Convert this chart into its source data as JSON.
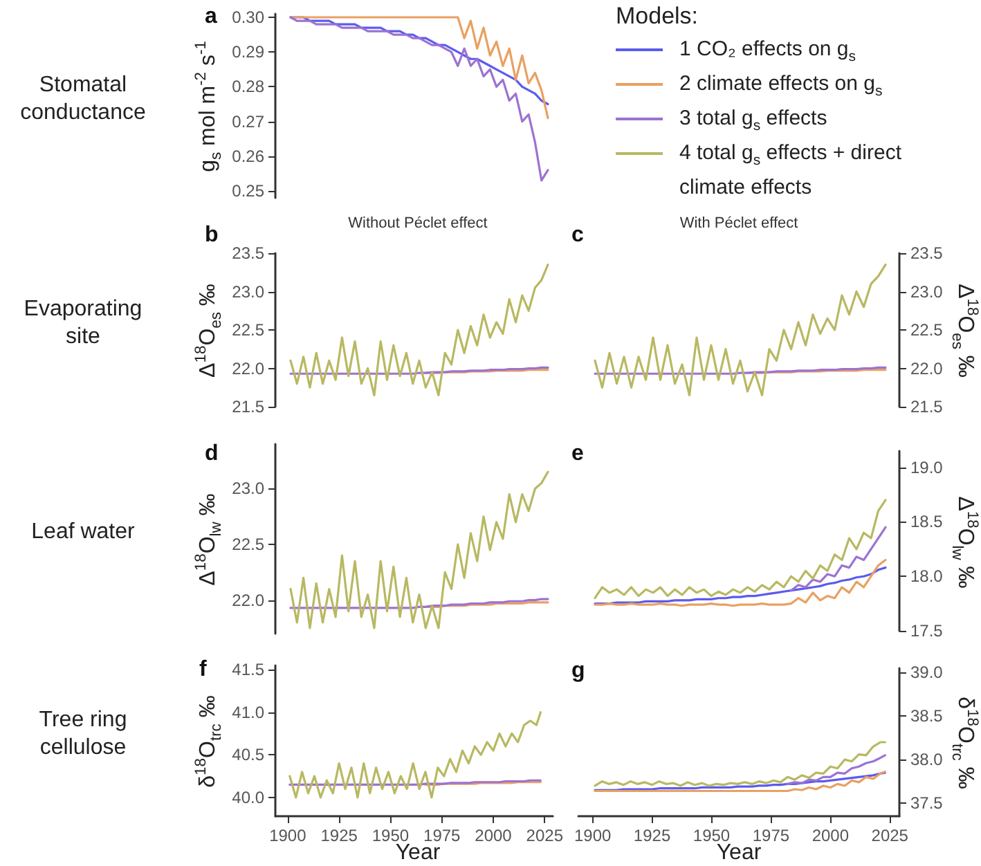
{
  "chart_data": [
    {
      "type": "line",
      "title": "a",
      "annotations": [
        "Stomatal conductance"
      ],
      "ylabel": "g$_{s}$ mol m$^{-2}$ s$^{-1}$",
      "legend": "right",
      "legend_title": "Models:",
      "tick_labels": "y",
      "categories": [
        null,
        null,
        null,
        null,
        null,
        null,
        null,
        null,
        null,
        null,
        null,
        null,
        null,
        null,
        null,
        null,
        null,
        null,
        null,
        null,
        null,
        null,
        null,
        null,
        null,
        null,
        null,
        null,
        null,
        null,
        null,
        null,
        null,
        null,
        null,
        null,
        null,
        null,
        null,
        null,
        null
      ],
      "ylim": [
        0.248,
        0.301
      ],
      "yticks": [
        0.25,
        0.26,
        0.27,
        0.28,
        0.29,
        {
          "value": 0.3,
          "label": "0.30"
        }
      ],
      "series": [
        {
          "name": "1 CO₂ effects on g$_{s}$",
          "color": "#5b5bef",
          "values": [
            0.3,
            0.3,
            0.3,
            0.299,
            0.299,
            0.299,
            0.299,
            0.298,
            0.298,
            0.298,
            0.298,
            0.297,
            0.297,
            0.297,
            0.297,
            0.296,
            0.296,
            0.296,
            0.295,
            0.295,
            0.294,
            0.294,
            0.293,
            0.292,
            0.292,
            0.291,
            0.29,
            0.289,
            0.288,
            0.288,
            0.287,
            0.286,
            0.285,
            0.284,
            0.283,
            0.282,
            0.28,
            0.279,
            0.278,
            0.276,
            0.275
          ]
        },
        {
          "name": "2 climate effects on g$_{s}$",
          "color": "#e9a062",
          "values": [
            0.3,
            0.3,
            0.3,
            0.3,
            0.3,
            0.3,
            0.3,
            0.3,
            0.3,
            0.3,
            0.3,
            0.3,
            0.3,
            0.3,
            0.3,
            0.3,
            0.3,
            0.3,
            0.3,
            0.3,
            0.3,
            0.3,
            0.3,
            0.3,
            0.3,
            0.3,
            0.3,
            0.294,
            0.299,
            0.291,
            0.297,
            0.289,
            0.293,
            0.286,
            0.291,
            0.282,
            0.289,
            0.281,
            0.284,
            0.279,
            0.271
          ]
        },
        {
          "name": "3 total g$_{s}$ effects",
          "color": "#9c72d2",
          "values": [
            0.3,
            0.299,
            0.299,
            0.299,
            0.298,
            0.298,
            0.298,
            0.298,
            0.297,
            0.297,
            0.297,
            0.297,
            0.296,
            0.296,
            0.296,
            0.296,
            0.295,
            0.295,
            0.295,
            0.294,
            0.294,
            0.293,
            0.292,
            0.292,
            0.291,
            0.29,
            0.286,
            0.291,
            0.286,
            0.288,
            0.283,
            0.285,
            0.28,
            0.282,
            0.276,
            0.278,
            0.27,
            0.272,
            0.264,
            0.253,
            0.256
          ]
        },
        {
          "name": "4 total g$_{s}$ effects + direct climate effects",
          "color": "#b8b862",
          "values": [
            null,
            null,
            null,
            null,
            null,
            null,
            null,
            null,
            null,
            null,
            null,
            null,
            null,
            null,
            null,
            null,
            null,
            null,
            null,
            null,
            null,
            null,
            null,
            null,
            null,
            null,
            null,
            null,
            null,
            null,
            null,
            null,
            null,
            null,
            null,
            null,
            null,
            null,
            null,
            null,
            null
          ]
        }
      ]
    },
    {
      "type": "line",
      "title": "b",
      "subtitle": "Without Péclet effect",
      "annotations": [
        "Evaporating site"
      ],
      "ylabel": "Δ$^{18}$O$_{es}$ ‰",
      "tick_labels": "y",
      "categories": [
        null,
        null,
        null,
        null,
        null,
        null,
        null,
        null,
        null,
        null,
        null,
        null,
        null,
        null,
        null,
        null,
        null,
        null,
        null,
        null,
        null,
        null,
        null,
        null,
        null,
        null,
        null,
        null,
        null,
        null,
        null,
        null,
        null,
        null,
        null,
        null,
        null,
        null,
        null,
        null,
        null
      ],
      "ylim": [
        21.5,
        23.5
      ],
      "yticks": [
        21.5,
        {
          "value": 22,
          "label": "22.0"
        },
        22.5,
        {
          "value": 23,
          "label": "23.0"
        },
        23.5
      ],
      "series": [
        {
          "color": "#5b5bef",
          "values": [
            null,
            null,
            null,
            null,
            null,
            null,
            null,
            null,
            null,
            null,
            null,
            null,
            null,
            null,
            null,
            null,
            null,
            null,
            null,
            null,
            null,
            null,
            null,
            null,
            null,
            null,
            null,
            null,
            null,
            null,
            null,
            null,
            null,
            null,
            null,
            null,
            null,
            null,
            null,
            null,
            null
          ]
        },
        {
          "color": "#e9a062",
          "values": [
            null,
            null,
            null,
            null,
            null,
            null,
            null,
            null,
            null,
            null,
            null,
            null,
            null,
            null,
            null,
            null,
            null,
            null,
            null,
            null,
            null,
            21.94,
            21.94,
            21.94,
            21.95,
            21.95,
            21.95,
            21.95,
            21.96,
            21.96,
            21.96,
            21.96,
            21.97,
            21.97,
            21.97,
            21.97,
            21.97,
            21.98,
            21.98,
            21.98,
            21.98
          ]
        },
        {
          "color": "#9c72d2",
          "values": [
            21.93,
            21.93,
            21.93,
            21.93,
            21.93,
            21.93,
            21.93,
            21.93,
            21.93,
            21.93,
            21.93,
            21.93,
            21.93,
            21.93,
            21.93,
            21.93,
            21.93,
            21.93,
            21.93,
            21.93,
            21.94,
            21.94,
            21.95,
            21.95,
            21.95,
            21.96,
            21.96,
            21.96,
            21.97,
            21.97,
            21.97,
            21.98,
            21.98,
            21.98,
            21.99,
            21.99,
            21.99,
            22.0,
            22.0,
            22.01,
            22.01
          ]
        },
        {
          "color": "#b8b862",
          "values": [
            22.1,
            21.8,
            22.15,
            21.75,
            22.2,
            21.8,
            22.1,
            21.85,
            22.4,
            21.9,
            22.35,
            21.8,
            22.0,
            21.65,
            22.35,
            21.85,
            22.3,
            21.9,
            22.2,
            21.8,
            22.1,
            21.75,
            21.95,
            21.65,
            22.2,
            22.05,
            22.5,
            22.2,
            22.55,
            22.3,
            22.7,
            22.4,
            22.6,
            22.45,
            22.9,
            22.6,
            22.95,
            22.75,
            23.05,
            23.15,
            23.35
          ]
        }
      ]
    },
    {
      "type": "line",
      "title": "c",
      "subtitle": "With Péclet effect",
      "ylabel": "Δ$^{18}$O$_{es}$ ‰",
      "tick_labels": "y",
      "categories": [
        null,
        null,
        null,
        null,
        null,
        null,
        null,
        null,
        null,
        null,
        null,
        null,
        null,
        null,
        null,
        null,
        null,
        null,
        null,
        null,
        null,
        null,
        null,
        null,
        null,
        null,
        null,
        null,
        null,
        null,
        null,
        null,
        null,
        null,
        null,
        null,
        null,
        null,
        null,
        null,
        null
      ],
      "ylim": [
        21.5,
        23.5
      ],
      "yticks": [
        21.5,
        {
          "value": 22,
          "label": "22.0"
        },
        22.5,
        {
          "value": 23,
          "label": "23.0"
        },
        23.5
      ],
      "series": [
        {
          "color": "#5b5bef",
          "values": [
            null,
            null,
            null,
            null,
            null,
            null,
            null,
            null,
            null,
            null,
            null,
            null,
            null,
            null,
            null,
            null,
            null,
            null,
            null,
            null,
            null,
            null,
            null,
            null,
            null,
            null,
            null,
            null,
            null,
            null,
            null,
            null,
            null,
            null,
            null,
            null,
            null,
            null,
            null,
            null,
            null
          ]
        },
        {
          "color": "#e9a062",
          "values": [
            null,
            null,
            null,
            null,
            null,
            null,
            null,
            null,
            null,
            null,
            null,
            null,
            null,
            null,
            null,
            null,
            null,
            null,
            null,
            null,
            null,
            21.94,
            21.94,
            21.94,
            21.95,
            21.95,
            21.95,
            21.95,
            21.96,
            21.96,
            21.96,
            21.96,
            21.97,
            21.97,
            21.97,
            21.97,
            21.97,
            21.98,
            21.98,
            21.98,
            21.98
          ]
        },
        {
          "color": "#9c72d2",
          "values": [
            21.93,
            21.93,
            21.93,
            21.93,
            21.93,
            21.93,
            21.93,
            21.93,
            21.93,
            21.93,
            21.93,
            21.93,
            21.93,
            21.93,
            21.93,
            21.93,
            21.93,
            21.93,
            21.93,
            21.93,
            21.94,
            21.94,
            21.95,
            21.95,
            21.95,
            21.96,
            21.96,
            21.96,
            21.97,
            21.97,
            21.97,
            21.98,
            21.98,
            21.98,
            21.99,
            21.99,
            21.99,
            22.0,
            22.0,
            22.01,
            22.01
          ]
        },
        {
          "color": "#b8b862",
          "values": [
            22.1,
            21.75,
            22.2,
            21.8,
            22.15,
            21.75,
            22.15,
            21.85,
            22.4,
            21.85,
            22.3,
            21.8,
            22.05,
            21.65,
            22.4,
            21.85,
            22.3,
            21.85,
            22.25,
            21.8,
            22.1,
            21.7,
            21.95,
            21.65,
            22.25,
            22.1,
            22.5,
            22.25,
            22.6,
            22.3,
            22.7,
            22.45,
            22.65,
            22.5,
            22.95,
            22.7,
            23.0,
            22.8,
            23.1,
            23.2,
            23.35
          ]
        }
      ]
    },
    {
      "type": "line",
      "title": "d",
      "annotations": [
        "Leaf water"
      ],
      "ylabel": "Δ$^{18}$O$_{lw}$ ‰",
      "tick_labels": "y",
      "categories": [
        null,
        null,
        null,
        null,
        null,
        null,
        null,
        null,
        null,
        null,
        null,
        null,
        null,
        null,
        null,
        null,
        null,
        null,
        null,
        null,
        null,
        null,
        null,
        null,
        null,
        null,
        null,
        null,
        null,
        null,
        null,
        null,
        null,
        null,
        null,
        null,
        null,
        null,
        null,
        null,
        null
      ],
      "ylim": [
        21.7,
        23.4
      ],
      "yticks": [
        {
          "value": 22,
          "label": "22.0"
        },
        22.5,
        {
          "value": 23,
          "label": "23.0"
        }
      ],
      "series": [
        {
          "color": "#5b5bef",
          "values": [
            null,
            null,
            null,
            null,
            null,
            null,
            null,
            null,
            null,
            null,
            null,
            null,
            null,
            null,
            null,
            null,
            null,
            null,
            null,
            null,
            null,
            null,
            null,
            null,
            null,
            null,
            null,
            null,
            null,
            null,
            null,
            null,
            null,
            null,
            null,
            null,
            null,
            null,
            null,
            null,
            null
          ]
        },
        {
          "color": "#e9a062",
          "values": [
            null,
            null,
            null,
            null,
            null,
            null,
            null,
            null,
            null,
            null,
            null,
            null,
            null,
            null,
            null,
            null,
            null,
            null,
            null,
            null,
            null,
            21.94,
            21.94,
            21.94,
            21.95,
            21.95,
            21.95,
            21.95,
            21.96,
            21.96,
            21.96,
            21.96,
            21.97,
            21.97,
            21.97,
            21.97,
            21.97,
            21.98,
            21.98,
            21.98,
            21.98
          ]
        },
        {
          "color": "#9c72d2",
          "values": [
            21.93,
            21.93,
            21.93,
            21.93,
            21.93,
            21.93,
            21.93,
            21.93,
            21.93,
            21.93,
            21.93,
            21.93,
            21.93,
            21.93,
            21.93,
            21.93,
            21.93,
            21.93,
            21.93,
            21.93,
            21.94,
            21.94,
            21.95,
            21.95,
            21.95,
            21.96,
            21.96,
            21.96,
            21.97,
            21.97,
            21.97,
            21.98,
            21.98,
            21.98,
            21.99,
            21.99,
            21.99,
            22.0,
            22.0,
            22.01,
            22.01
          ]
        },
        {
          "color": "#b8b862",
          "values": [
            22.1,
            21.8,
            22.2,
            21.75,
            22.15,
            21.8,
            22.1,
            21.85,
            22.4,
            21.9,
            22.35,
            21.85,
            22.05,
            21.75,
            22.35,
            21.9,
            22.3,
            21.85,
            22.2,
            21.8,
            22.05,
            21.75,
            21.95,
            21.75,
            22.25,
            22.1,
            22.5,
            22.2,
            22.6,
            22.35,
            22.75,
            22.45,
            22.7,
            22.55,
            22.95,
            22.7,
            22.95,
            22.8,
            23.0,
            23.05,
            23.15
          ]
        }
      ]
    },
    {
      "type": "line",
      "title": "e",
      "ylabel": "Δ$^{18}$O$_{lw}$ ‰",
      "tick_labels": "y",
      "categories": [
        null,
        null,
        null,
        null,
        null,
        null,
        null,
        null,
        null,
        null,
        null,
        null,
        null,
        null,
        null,
        null,
        null,
        null,
        null,
        null,
        null,
        null,
        null,
        null,
        null,
        null,
        null,
        null,
        null,
        null,
        null,
        null,
        null,
        null,
        null,
        null,
        null,
        null,
        null,
        null,
        null
      ],
      "ylim": [
        17.5,
        19.15
      ],
      "yticks": [
        17.5,
        {
          "value": 18,
          "label": "18.0"
        },
        18.5,
        {
          "value": 19,
          "label": "19.0"
        }
      ],
      "series": [
        {
          "color": "#5b5bef",
          "values": [
            17.75,
            17.75,
            17.75,
            17.76,
            17.76,
            17.76,
            17.76,
            17.77,
            17.77,
            17.77,
            17.77,
            17.78,
            17.78,
            17.78,
            17.79,
            17.79,
            17.79,
            17.8,
            17.8,
            17.81,
            17.81,
            17.82,
            17.82,
            17.83,
            17.84,
            17.85,
            17.86,
            17.87,
            17.88,
            17.89,
            17.9,
            17.91,
            17.93,
            17.94,
            17.96,
            17.97,
            17.99,
            18.0,
            18.02,
            18.06,
            18.08
          ]
        },
        {
          "color": "#e9a062",
          "values": [
            17.74,
            17.74,
            17.75,
            17.74,
            17.74,
            17.75,
            17.74,
            17.74,
            17.74,
            17.75,
            17.74,
            17.74,
            17.73,
            17.74,
            17.74,
            17.74,
            17.75,
            17.74,
            17.74,
            17.73,
            17.74,
            17.74,
            17.74,
            17.75,
            17.74,
            17.74,
            17.74,
            17.75,
            17.8,
            17.76,
            17.85,
            17.78,
            17.82,
            17.8,
            17.9,
            17.85,
            17.95,
            17.9,
            18.0,
            18.1,
            18.15
          ]
        },
        {
          "color": "#9c72d2",
          "values": [
            null,
            null,
            null,
            null,
            null,
            null,
            null,
            null,
            null,
            null,
            null,
            null,
            null,
            null,
            null,
            null,
            null,
            null,
            null,
            null,
            null,
            null,
            null,
            null,
            null,
            null,
            null,
            17.87,
            17.92,
            17.9,
            17.97,
            17.95,
            18.02,
            18.0,
            18.1,
            18.08,
            18.18,
            18.15,
            18.25,
            18.35,
            18.45
          ]
        },
        {
          "color": "#b8b862",
          "values": [
            17.8,
            17.9,
            17.85,
            17.88,
            17.83,
            17.9,
            17.82,
            17.88,
            17.85,
            17.9,
            17.82,
            17.88,
            17.83,
            17.9,
            17.85,
            17.88,
            17.82,
            17.86,
            17.83,
            17.88,
            17.85,
            17.9,
            17.86,
            17.92,
            17.88,
            17.95,
            17.9,
            18.0,
            17.95,
            18.05,
            17.98,
            18.1,
            18.05,
            18.2,
            18.15,
            18.35,
            18.25,
            18.4,
            18.35,
            18.6,
            18.7
          ]
        }
      ]
    },
    {
      "type": "line",
      "title": "f",
      "annotations": [
        "Tree ring cellulose"
      ],
      "ylabel": "δ$^{18}$O$_{trc}$ ‰",
      "xlabel": "Year",
      "x": [
        1901,
        1904,
        1907,
        1910,
        1913,
        1916,
        1919,
        1922,
        1925,
        1928,
        1931,
        1934,
        1937,
        1940,
        1943,
        1946,
        1949,
        1952,
        1955,
        1958,
        1961,
        1964,
        1967,
        1970,
        1973,
        1976,
        1979,
        1982,
        1985,
        1988,
        1991,
        1994,
        1997,
        2000,
        2003,
        2006,
        2009,
        2012,
        2015,
        2018,
        2021,
        2023
      ],
      "xlim": [
        1894,
        2029
      ],
      "xticks": [
        1900,
        1925,
        1950,
        1975,
        2000,
        2025
      ],
      "ylim": [
        39.78,
        41.55
      ],
      "yticks": [
        {
          "value": 40,
          "label": "40.0"
        },
        40.5,
        {
          "value": 41,
          "label": "41.0"
        },
        41.5
      ],
      "series": [
        {
          "color": "#5b5bef",
          "values": [
            null,
            null,
            null,
            null,
            null,
            null,
            null,
            null,
            null,
            null,
            null,
            null,
            null,
            null,
            null,
            null,
            null,
            null,
            null,
            null,
            null,
            null,
            null,
            null,
            null,
            null,
            null,
            null,
            null,
            null,
            null,
            null,
            null,
            null,
            null,
            null,
            null,
            null,
            null,
            null,
            null,
            null
          ]
        },
        {
          "color": "#e9a062",
          "values": [
            null,
            null,
            null,
            null,
            null,
            null,
            null,
            null,
            null,
            null,
            null,
            null,
            null,
            null,
            null,
            null,
            null,
            null,
            null,
            null,
            null,
            null,
            40.15,
            40.15,
            40.15,
            40.16,
            40.16,
            40.16,
            40.16,
            40.16,
            40.16,
            40.17,
            40.17,
            40.17,
            40.17,
            40.17,
            40.17,
            40.18,
            40.18,
            40.18,
            40.18,
            40.18
          ]
        },
        {
          "color": "#9c72d2",
          "values": [
            40.15,
            40.15,
            40.15,
            40.15,
            40.15,
            40.15,
            40.15,
            40.15,
            40.15,
            40.15,
            40.15,
            40.15,
            40.15,
            40.15,
            40.15,
            40.15,
            40.15,
            40.15,
            40.15,
            40.15,
            40.15,
            40.15,
            40.16,
            40.16,
            40.16,
            40.16,
            40.17,
            40.17,
            40.17,
            40.17,
            40.18,
            40.18,
            40.18,
            40.18,
            40.18,
            40.19,
            40.19,
            40.19,
            40.19,
            40.2,
            40.2,
            40.2
          ]
        },
        {
          "color": "#b8b862",
          "values": [
            40.25,
            40.0,
            40.3,
            40.05,
            40.25,
            40.0,
            40.2,
            40.05,
            40.4,
            40.1,
            40.35,
            40.0,
            40.4,
            40.05,
            40.35,
            40.1,
            40.3,
            40.05,
            40.25,
            40.1,
            40.4,
            40.1,
            40.3,
            40.0,
            40.35,
            40.25,
            40.45,
            40.3,
            40.55,
            40.4,
            40.6,
            40.5,
            40.65,
            40.55,
            40.75,
            40.6,
            40.75,
            40.65,
            40.85,
            40.9,
            40.85,
            41.0
          ]
        }
      ]
    },
    {
      "type": "line",
      "title": "g",
      "y2label": "δ$^{18}$O$_{trc}$ ‰",
      "xlabel": "Year",
      "x": [
        1901,
        1904,
        1907,
        1910,
        1913,
        1916,
        1919,
        1922,
        1925,
        1928,
        1931,
        1934,
        1937,
        1940,
        1943,
        1946,
        1949,
        1952,
        1955,
        1958,
        1961,
        1964,
        1967,
        1970,
        1973,
        1976,
        1979,
        1982,
        1985,
        1988,
        1991,
        1994,
        1997,
        2000,
        2003,
        2006,
        2009,
        2012,
        2015,
        2018,
        2021,
        2023
      ],
      "xlim": [
        1894,
        2029
      ],
      "xticks": [
        1900,
        1925,
        1950,
        1975,
        2000,
        2025
      ],
      "y2lim": [
        37.35,
        39.05
      ],
      "y2ticks": [
        37.5,
        {
          "value": 38,
          "label": "38.0"
        },
        38.5,
        {
          "value": 39,
          "label": "39.0"
        }
      ],
      "series": [
        {
          "axis": "y2",
          "color": "#5b5bef",
          "values": [
            37.65,
            37.65,
            37.65,
            37.65,
            37.66,
            37.66,
            37.66,
            37.66,
            37.66,
            37.67,
            37.67,
            37.67,
            37.67,
            37.67,
            37.67,
            37.68,
            37.68,
            37.68,
            37.68,
            37.68,
            37.69,
            37.69,
            37.69,
            37.7,
            37.7,
            37.71,
            37.71,
            37.72,
            37.72,
            37.73,
            37.74,
            37.75,
            37.75,
            37.76,
            37.77,
            37.78,
            37.79,
            37.8,
            37.81,
            37.82,
            37.84,
            37.85
          ]
        },
        {
          "axis": "y2",
          "color": "#e9a062",
          "values": [
            37.64,
            37.64,
            37.64,
            37.64,
            37.64,
            37.64,
            37.64,
            37.64,
            37.64,
            37.64,
            37.64,
            37.64,
            37.64,
            37.64,
            37.64,
            37.64,
            37.64,
            37.64,
            37.64,
            37.64,
            37.64,
            37.64,
            37.64,
            37.64,
            37.64,
            37.64,
            37.64,
            37.64,
            37.66,
            37.65,
            37.68,
            37.66,
            37.7,
            37.68,
            37.72,
            37.7,
            37.76,
            37.74,
            37.8,
            37.78,
            37.84,
            37.86
          ]
        },
        {
          "axis": "y2",
          "color": "#9c72d2",
          "values": [
            null,
            null,
            null,
            null,
            null,
            null,
            null,
            null,
            null,
            null,
            null,
            null,
            null,
            null,
            null,
            null,
            null,
            null,
            null,
            null,
            null,
            null,
            null,
            null,
            null,
            null,
            null,
            37.72,
            37.74,
            37.73,
            37.77,
            37.76,
            37.8,
            37.8,
            37.85,
            37.84,
            37.9,
            37.92,
            37.96,
            37.98,
            38.02,
            38.05
          ]
        },
        {
          "axis": "y2",
          "color": "#b8b862",
          "values": [
            37.7,
            37.75,
            37.72,
            37.74,
            37.71,
            37.75,
            37.72,
            37.74,
            37.71,
            37.75,
            37.72,
            37.73,
            37.7,
            37.74,
            37.71,
            37.73,
            37.7,
            37.72,
            37.71,
            37.73,
            37.72,
            37.74,
            37.72,
            37.75,
            37.73,
            37.76,
            37.74,
            37.8,
            37.77,
            37.82,
            37.79,
            37.85,
            37.84,
            37.92,
            37.9,
            38.0,
            37.98,
            38.06,
            38.05,
            38.15,
            38.2,
            38.2
          ]
        }
      ]
    }
  ]
}
